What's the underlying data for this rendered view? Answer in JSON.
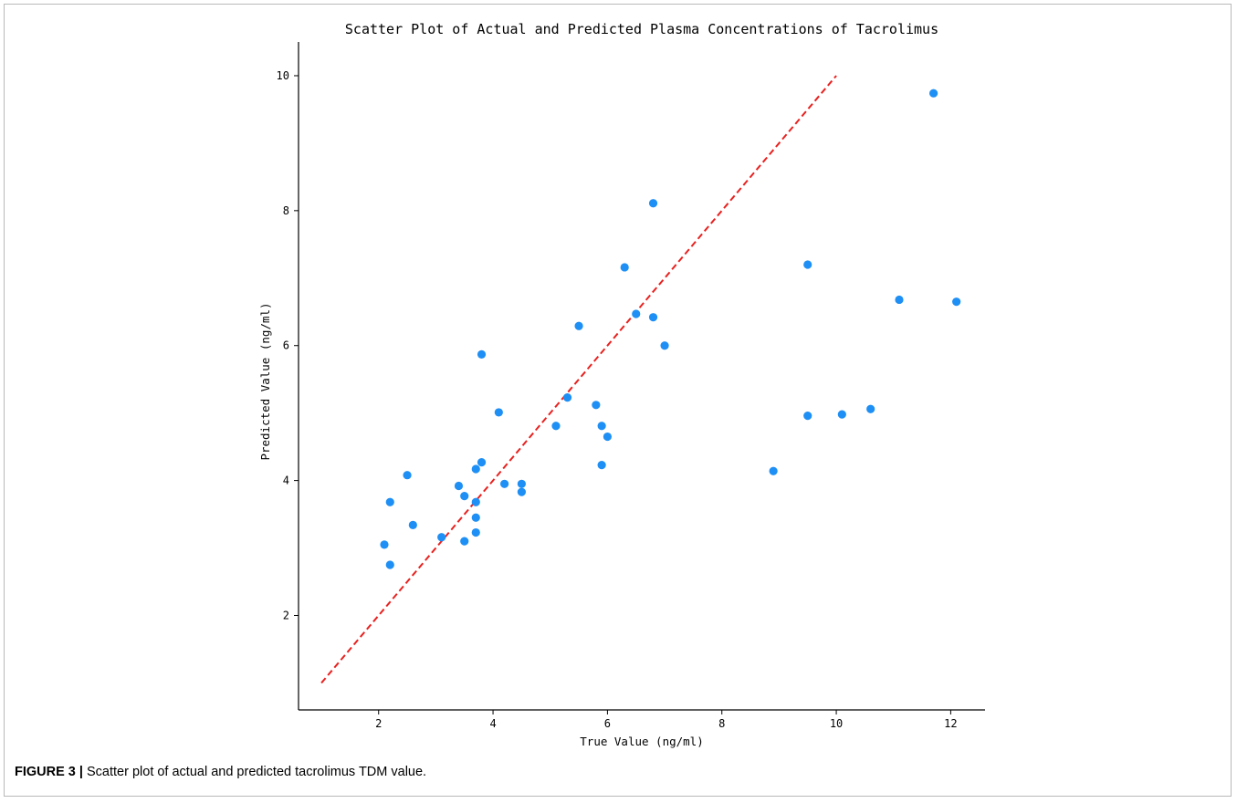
{
  "figure": {
    "label": "FIGURE 3 |",
    "caption": "Scatter plot of actual and predicted tacrolimus TDM value."
  },
  "chart_data": {
    "type": "scatter",
    "title": "Scatter Plot of Actual and Predicted Plasma Concentrations of Tacrolimus",
    "xlabel": "True Value (ng/ml)",
    "ylabel": "Predicted Value (ng/ml)",
    "xlim": [
      0.6,
      12.6
    ],
    "ylim": [
      0.6,
      10.5
    ],
    "xticks": [
      2,
      4,
      6,
      8,
      10,
      12
    ],
    "yticks": [
      2,
      4,
      6,
      8,
      10
    ],
    "grid": false,
    "point_color": "#1e8ff5",
    "reference_line": {
      "from": [
        1,
        1
      ],
      "to": [
        10,
        10
      ],
      "color": "#e8211f",
      "style": "dashed"
    },
    "points": [
      {
        "x": 2.1,
        "y": 3.05
      },
      {
        "x": 2.2,
        "y": 2.75
      },
      {
        "x": 2.2,
        "y": 3.68
      },
      {
        "x": 2.5,
        "y": 4.08
      },
      {
        "x": 2.6,
        "y": 3.34
      },
      {
        "x": 3.1,
        "y": 3.16
      },
      {
        "x": 3.4,
        "y": 3.92
      },
      {
        "x": 3.5,
        "y": 3.77
      },
      {
        "x": 3.5,
        "y": 3.1
      },
      {
        "x": 3.7,
        "y": 3.68
      },
      {
        "x": 3.7,
        "y": 3.45
      },
      {
        "x": 3.7,
        "y": 3.23
      },
      {
        "x": 3.7,
        "y": 4.17
      },
      {
        "x": 3.8,
        "y": 4.27
      },
      {
        "x": 3.8,
        "y": 5.87
      },
      {
        "x": 4.1,
        "y": 5.01
      },
      {
        "x": 4.2,
        "y": 3.95
      },
      {
        "x": 4.5,
        "y": 3.95
      },
      {
        "x": 4.5,
        "y": 3.83
      },
      {
        "x": 5.1,
        "y": 4.81
      },
      {
        "x": 5.3,
        "y": 5.23
      },
      {
        "x": 5.5,
        "y": 6.29
      },
      {
        "x": 5.8,
        "y": 5.12
      },
      {
        "x": 5.9,
        "y": 4.81
      },
      {
        "x": 5.9,
        "y": 4.23
      },
      {
        "x": 6.0,
        "y": 4.65
      },
      {
        "x": 6.3,
        "y": 7.16
      },
      {
        "x": 6.5,
        "y": 6.47
      },
      {
        "x": 6.8,
        "y": 8.11
      },
      {
        "x": 6.8,
        "y": 6.42
      },
      {
        "x": 7.0,
        "y": 6.0
      },
      {
        "x": 8.9,
        "y": 4.14
      },
      {
        "x": 9.5,
        "y": 7.2
      },
      {
        "x": 9.5,
        "y": 4.96
      },
      {
        "x": 10.1,
        "y": 4.98
      },
      {
        "x": 10.6,
        "y": 5.06
      },
      {
        "x": 11.1,
        "y": 6.68
      },
      {
        "x": 11.7,
        "y": 9.74
      },
      {
        "x": 12.1,
        "y": 6.65
      }
    ]
  }
}
